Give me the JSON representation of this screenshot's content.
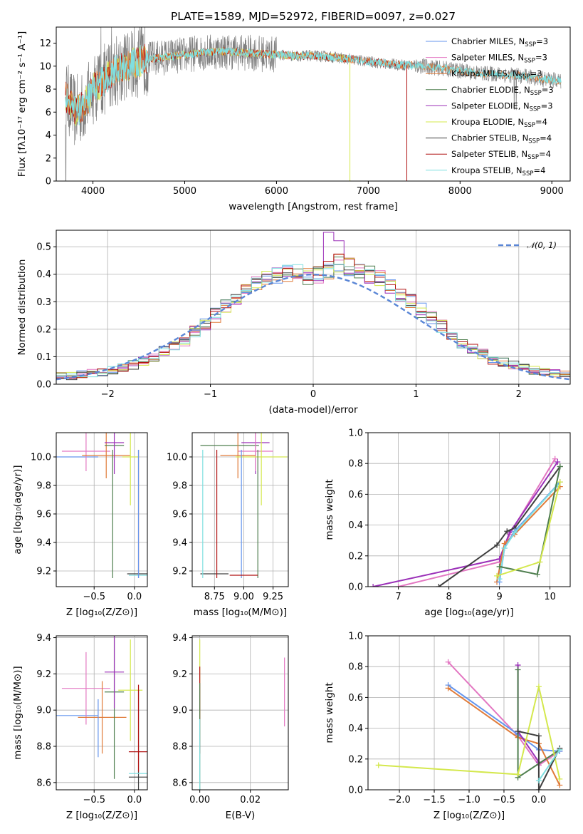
{
  "colors": {
    "Chabrier MILES": "#6495ed",
    "Salpeter MILES": "#e377c2",
    "Kroupa MILES": "#e07b39",
    "Chabrier ELODIE": "#4f7f4f",
    "Salpeter ELODIE": "#9b30b8",
    "Kroupa ELODIE": "#d4e84d",
    "Chabrier STELIB": "#404040",
    "Salpeter STELIB": "#b01010",
    "Kroupa STELIB": "#7fdfe0",
    "spectrum": "#808080",
    "normal": "#5a86d6"
  },
  "chart_data": [
    {
      "id": "spectrum",
      "type": "line",
      "title": "PLATE=1589, MJD=52972, FIBERID=0097, z=0.027",
      "xlabel": "wavelength [Angstrom, rest frame]",
      "ylabel": "Flux [fλ10⁻¹⁷ erg cm⁻² s⁻¹ A⁻¹]",
      "xlim": [
        3600,
        9200
      ],
      "ylim": [
        0,
        13.4
      ],
      "xticks": [
        4000,
        5000,
        6000,
        7000,
        8000,
        9000
      ],
      "yticks": [
        0,
        2,
        4,
        6,
        8,
        10,
        12
      ],
      "grid": false,
      "legend_position": "upper-right",
      "legend": [
        {
          "model": "Chabrier MILES",
          "label": "Chabrier MILES, N",
          "nssp": 3
        },
        {
          "model": "Salpeter MILES",
          "label": "Salpeter MILES, N",
          "nssp": 3
        },
        {
          "model": "Kroupa MILES",
          "label": "Kroupa MILES, N",
          "nssp": 3
        },
        {
          "model": "Chabrier ELODIE",
          "label": "Chabrier ELODIE, N",
          "nssp": 3
        },
        {
          "model": "Salpeter ELODIE",
          "label": "Salpeter ELODIE, N",
          "nssp": 3
        },
        {
          "model": "Kroupa ELODIE",
          "label": "Kroupa ELODIE, N",
          "nssp": 4
        },
        {
          "model": "Chabrier STELIB",
          "label": "Chabrier STELIB, N",
          "nssp": 4
        },
        {
          "model": "Salpeter STELIB",
          "label": "Salpeter STELIB, N",
          "nssp": 4
        },
        {
          "model": "Kroupa STELIB",
          "label": "Kroupa STELIB, N",
          "nssp": 4
        }
      ],
      "legend_sub": "SSP",
      "legend_suffix": "=",
      "model_curve": {
        "x": [
          3700,
          3800,
          3900,
          4000,
          4100,
          4200,
          4300,
          4400,
          4500,
          4600,
          4700,
          4800,
          5000,
          5200,
          5400,
          5600,
          5800,
          6000,
          6200,
          6400,
          6600,
          6800,
          7000,
          7200,
          7400,
          7600,
          7800,
          8000,
          8200,
          8400,
          8600,
          8800,
          9000,
          9100
        ],
        "y": [
          7.5,
          6.0,
          6.5,
          8.0,
          8.6,
          9.4,
          9.9,
          10.1,
          10.4,
          10.6,
          10.7,
          10.8,
          11.0,
          11.2,
          11.3,
          11.2,
          11.1,
          11.0,
          10.9,
          10.9,
          10.8,
          10.6,
          10.4,
          10.2,
          10.1,
          10.0,
          9.8,
          9.6,
          9.4,
          9.3,
          9.2,
          9.0,
          8.8,
          8.7
        ]
      },
      "model_curve_dips": [
        {
          "model": "Kroupa ELODIE",
          "x": 6800,
          "y": 0
        },
        {
          "model": "Salpeter STELIB",
          "x": 7420,
          "y": 0
        }
      ]
    },
    {
      "id": "residual_histogram",
      "type": "histogram",
      "xlabel": "(data-model)/error",
      "ylabel": "Normed distribution",
      "xlim": [
        -2.5,
        2.5
      ],
      "ylim": [
        0,
        0.56
      ],
      "xticks": [
        -2,
        -1,
        0,
        1,
        2
      ],
      "yticks": [
        0.0,
        0.1,
        0.2,
        0.3,
        0.4,
        0.5
      ],
      "grid": true,
      "legend_position": "upper-right",
      "legend_label": "𝒩(0, 1)",
      "bin_width": 0.1,
      "envelope": [
        0.03,
        0.03,
        0.035,
        0.04,
        0.045,
        0.05,
        0.06,
        0.07,
        0.085,
        0.1,
        0.12,
        0.14,
        0.16,
        0.19,
        0.22,
        0.25,
        0.28,
        0.31,
        0.34,
        0.36,
        0.38,
        0.39,
        0.4,
        0.4,
        0.39,
        0.4,
        0.42,
        0.44,
        0.43,
        0.42,
        0.4,
        0.38,
        0.36,
        0.33,
        0.3,
        0.27,
        0.24,
        0.21,
        0.18,
        0.15,
        0.13,
        0.11,
        0.09,
        0.08,
        0.07,
        0.06,
        0.05,
        0.045,
        0.04,
        0.035
      ]
    },
    {
      "id": "age_vs_Z",
      "type": "errorbar",
      "xlabel": "Z [log₁₀(Z/Z⊙)]",
      "ylabel": "age  [log₁₀(age/yr)]",
      "xlim": [
        -0.97,
        0.16
      ],
      "ylim": [
        9.09,
        10.17
      ],
      "xticks": [
        -0.5,
        0.0
      ],
      "yticks": [
        9.2,
        9.4,
        9.6,
        9.8,
        10.0
      ],
      "grid": true,
      "points": [
        {
          "model": "Chabrier MILES",
          "x": -0.8,
          "xerr": 0.35,
          "y": 10.0,
          "yerr": 0.0
        },
        {
          "model": "Salpeter MILES",
          "x": -0.6,
          "xerr": 0.3,
          "y": 10.04,
          "yerr": 0.14
        },
        {
          "model": "Kroupa MILES",
          "x": -0.35,
          "xerr": 0.3,
          "y": 10.01,
          "yerr": 0.16
        },
        {
          "model": "Chabrier ELODIE",
          "x": -0.25,
          "xerr": 0.12,
          "y": 10.08,
          "yerr": 0.0
        },
        {
          "model": "Salpeter ELODIE",
          "x": -0.25,
          "xerr": 0.12,
          "y": 10.1,
          "yerr": 0.22
        },
        {
          "model": "Kroupa ELODIE",
          "x": -0.05,
          "xerr": 0.1,
          "y": 10.0,
          "yerr": 0.34
        },
        {
          "model": "Chabrier STELIB",
          "x": 0.05,
          "xerr": 0.14,
          "y": 9.18,
          "yerr": 0.0
        },
        {
          "model": "Salpeter STELIB",
          "x": 0.05,
          "xerr": 0.0,
          "y": 9.6,
          "yerr": 0.45
        },
        {
          "model": "Kroupa STELIB",
          "x": 0.05,
          "xerr": 0.12,
          "y": 9.17,
          "yerr": 0.0
        },
        {
          "model": "Chabrier ELODIE",
          "x": -0.27,
          "xerr": 0.0,
          "y": 9.6,
          "yerr": 0.45
        },
        {
          "model": "Chabrier MILES",
          "x": 0.05,
          "xerr": 0.0,
          "y": 9.6,
          "yerr": 0.45
        }
      ]
    },
    {
      "id": "age_vs_mass",
      "type": "errorbar",
      "xlabel": "mass [log₁₀(M/M⊙)]",
      "ylabel": "",
      "xlim": [
        8.56,
        9.38
      ],
      "ylim": [
        9.09,
        10.17
      ],
      "xticks": [
        8.75,
        9.0,
        9.25
      ],
      "yticks": [
        9.2,
        9.4,
        9.6,
        9.8,
        10.0
      ],
      "grid": true,
      "points": [
        {
          "model": "Chabrier STELIB",
          "x": 8.75,
          "xerr": 0.12,
          "y": 9.18,
          "yerr": 0.0
        },
        {
          "model": "Chabrier ELODIE",
          "x": 8.88,
          "xerr": 0.25,
          "y": 10.08,
          "yerr": 0.0
        },
        {
          "model": "Salpeter ELODIE",
          "x": 9.1,
          "xerr": 0.12,
          "y": 10.1,
          "yerr": 0.22
        },
        {
          "model": "Salpeter MILES",
          "x": 9.1,
          "xerr": 0.15,
          "y": 10.04,
          "yerr": 0.14
        },
        {
          "model": "Kroupa MILES",
          "x": 8.95,
          "xerr": 0.15,
          "y": 10.01,
          "yerr": 0.16
        },
        {
          "model": "Kroupa ELODIE",
          "x": 9.15,
          "xerr": 0.22,
          "y": 10.0,
          "yerr": 0.34
        },
        {
          "model": "Salpeter STELIB",
          "x": 8.77,
          "xerr": 0.0,
          "y": 9.6,
          "yerr": 0.45
        },
        {
          "model": "Kroupa STELIB",
          "x": 8.65,
          "xerr": 0.0,
          "y": 9.6,
          "yerr": 0.45
        },
        {
          "model": "Chabrier MILES",
          "x": 8.98,
          "xerr": 0.0,
          "y": 9.6,
          "yerr": 0.45
        },
        {
          "model": "Chabrier ELODIE",
          "x": 9.12,
          "xerr": 0.0,
          "y": 9.6,
          "yerr": 0.45
        },
        {
          "model": "Salpeter STELIB",
          "x": 9.0,
          "xerr": 0.12,
          "y": 9.17,
          "yerr": 0.0
        }
      ]
    },
    {
      "id": "massweight_vs_age",
      "type": "line",
      "xlabel": "age  [log₁₀(age/yr)]",
      "ylabel": "mass weight",
      "xlim": [
        6.4,
        10.4
      ],
      "ylim": [
        0.0,
        1.0
      ],
      "xticks": [
        7,
        8,
        9,
        10
      ],
      "yticks": [
        0.0,
        0.2,
        0.4,
        0.6,
        0.8,
        1.0
      ],
      "grid": true,
      "series": [
        {
          "model": "Salpeter MILES",
          "x": [
            7.0,
            9.0,
            9.2,
            10.1
          ],
          "y": [
            0.0,
            0.16,
            0.34,
            0.83
          ]
        },
        {
          "model": "Salpeter ELODIE",
          "x": [
            6.5,
            9.0,
            9.2,
            10.15
          ],
          "y": [
            0.0,
            0.18,
            0.35,
            0.81
          ]
        },
        {
          "model": "Chabrier STELIB",
          "x": [
            7.8,
            8.95,
            9.15,
            9.3,
            10.2
          ],
          "y": [
            0.0,
            0.27,
            0.36,
            0.38,
            0.78
          ]
        },
        {
          "model": "Kroupa MILES",
          "x": [
            8.95,
            9.1,
            9.3,
            10.2
          ],
          "y": [
            0.03,
            0.28,
            0.34,
            0.65
          ]
        },
        {
          "model": "Chabrier MILES",
          "x": [
            9.0,
            9.1,
            9.3,
            10.2
          ],
          "y": [
            0.03,
            0.25,
            0.36,
            0.68
          ]
        },
        {
          "model": "Kroupa STELIB",
          "x": [
            9.0,
            9.1,
            9.3,
            10.15
          ],
          "y": [
            0.05,
            0.25,
            0.35,
            0.66
          ]
        },
        {
          "model": "Chabrier ELODIE",
          "x": [
            9.0,
            9.75,
            10.2
          ],
          "y": [
            0.13,
            0.08,
            0.78
          ]
        },
        {
          "model": "Kroupa ELODIE",
          "x": [
            8.95,
            9.8,
            10.2
          ],
          "y": [
            0.07,
            0.16,
            0.68
          ]
        }
      ]
    },
    {
      "id": "mass_vs_Z",
      "type": "errorbar",
      "xlabel": "Z [log₁₀(Z/Z⊙)]",
      "ylabel": "mass [log₁₀(M/M⊙)]",
      "xlim": [
        -0.97,
        0.16
      ],
      "ylim": [
        8.56,
        9.41
      ],
      "xticks": [
        -0.5,
        0.0
      ],
      "yticks": [
        8.6,
        8.8,
        9.0,
        9.2,
        9.4
      ],
      "grid": true,
      "points": [
        {
          "model": "Chabrier MILES",
          "x": -0.8,
          "xerr": 0.35,
          "y": 8.97,
          "yerr": 0.0
        },
        {
          "model": "Salpeter MILES",
          "x": -0.6,
          "xerr": 0.3,
          "y": 9.12,
          "yerr": 0.2
        },
        {
          "model": "Kroupa MILES",
          "x": -0.4,
          "xerr": 0.3,
          "y": 8.96,
          "yerr": 0.2
        },
        {
          "model": "Chabrier ELODIE",
          "x": -0.25,
          "xerr": 0.12,
          "y": 9.1,
          "yerr": 0.48
        },
        {
          "model": "Salpeter ELODIE",
          "x": -0.25,
          "xerr": 0.12,
          "y": 9.21,
          "yerr": 0.2
        },
        {
          "model": "Kroupa ELODIE",
          "x": -0.05,
          "xerr": 0.15,
          "y": 9.11,
          "yerr": 0.28
        },
        {
          "model": "Chabrier STELIB",
          "x": 0.05,
          "xerr": 0.12,
          "y": 8.63,
          "yerr": 0.48
        },
        {
          "model": "Salpeter STELIB",
          "x": 0.05,
          "xerr": 0.12,
          "y": 8.77,
          "yerr": 0.0
        },
        {
          "model": "Kroupa STELIB",
          "x": 0.05,
          "xerr": 0.12,
          "y": 8.65,
          "yerr": 0.0
        },
        {
          "model": "Chabrier MILES",
          "x": -0.45,
          "xerr": 0.0,
          "y": 8.9,
          "yerr": 0.16
        },
        {
          "model": "Salpeter STELIB",
          "x": 0.05,
          "xerr": 0.0,
          "y": 8.9,
          "yerr": 0.24
        }
      ]
    },
    {
      "id": "mass_vs_ebv",
      "type": "errorbar",
      "xlabel": "E(B-V)",
      "ylabel": "",
      "xlim": [
        -0.003,
        0.035
      ],
      "ylim": [
        8.56,
        9.41
      ],
      "xticks": [
        0.0,
        0.02
      ],
      "yticks": [
        8.6,
        8.8,
        9.0,
        9.2,
        9.4
      ],
      "grid": true,
      "points": [
        {
          "model": "Kroupa ELODIE",
          "x": 0.0,
          "xerr": 0.0,
          "y": 9.11,
          "yerr": 0.28
        },
        {
          "model": "Salpeter STELIB",
          "x": 0.0,
          "xerr": 0.0,
          "y": 9.0,
          "yerr": 0.24
        },
        {
          "model": "Chabrier ELODIE",
          "x": 0.0,
          "xerr": 0.0,
          "y": 8.85,
          "yerr": 0.3
        },
        {
          "model": "Kroupa STELIB",
          "x": 0.0,
          "xerr": 0.0,
          "y": 8.75,
          "yerr": 0.2
        },
        {
          "model": "Salpeter MILES",
          "x": 0.0335,
          "xerr": 0.0,
          "y": 9.1,
          "yerr": 0.19
        }
      ]
    },
    {
      "id": "massweight_vs_Z",
      "type": "line",
      "xlabel": "Z [log₁₀(Z/Z⊙)]",
      "ylabel": "mass weight",
      "xlim": [
        -2.45,
        0.45
      ],
      "ylim": [
        0.0,
        1.0
      ],
      "xticks": [
        -2.0,
        -1.5,
        -1.0,
        -0.5,
        0.0
      ],
      "yticks": [
        0.0,
        0.2,
        0.4,
        0.6,
        0.8,
        1.0
      ],
      "grid": true,
      "series": [
        {
          "model": "Salpeter MILES",
          "x": [
            -1.3,
            -0.3,
            0.0,
            0.3
          ],
          "y": [
            0.83,
            0.35,
            0.16,
            0.25
          ]
        },
        {
          "model": "Chabrier MILES",
          "x": [
            -1.3,
            -0.3,
            0.0,
            0.3
          ],
          "y": [
            0.68,
            0.36,
            0.26,
            0.25
          ]
        },
        {
          "model": "Kroupa MILES",
          "x": [
            -1.3,
            -0.3,
            0.0,
            0.3
          ],
          "y": [
            0.66,
            0.34,
            0.3,
            0.03
          ]
        },
        {
          "model": "Salpeter ELODIE",
          "x": [
            -0.3,
            -0.3,
            0.0
          ],
          "y": [
            0.81,
            0.38,
            0.18
          ]
        },
        {
          "model": "Chabrier ELODIE",
          "x": [
            -0.3,
            -0.3,
            0.3
          ],
          "y": [
            0.78,
            0.08,
            0.26
          ]
        },
        {
          "model": "Kroupa ELODIE",
          "x": [
            -2.3,
            -0.3,
            0.0,
            0.3
          ],
          "y": [
            0.16,
            0.1,
            0.67,
            0.07
          ]
        },
        {
          "model": "Chabrier STELIB",
          "x": [
            -0.3,
            0.0,
            0.0,
            0.3
          ],
          "y": [
            0.38,
            0.35,
            0.0,
            0.27
          ]
        },
        {
          "model": "Kroupa STELIB",
          "x": [
            0.0,
            0.3
          ],
          "y": [
            0.06,
            0.26
          ]
        }
      ]
    }
  ]
}
